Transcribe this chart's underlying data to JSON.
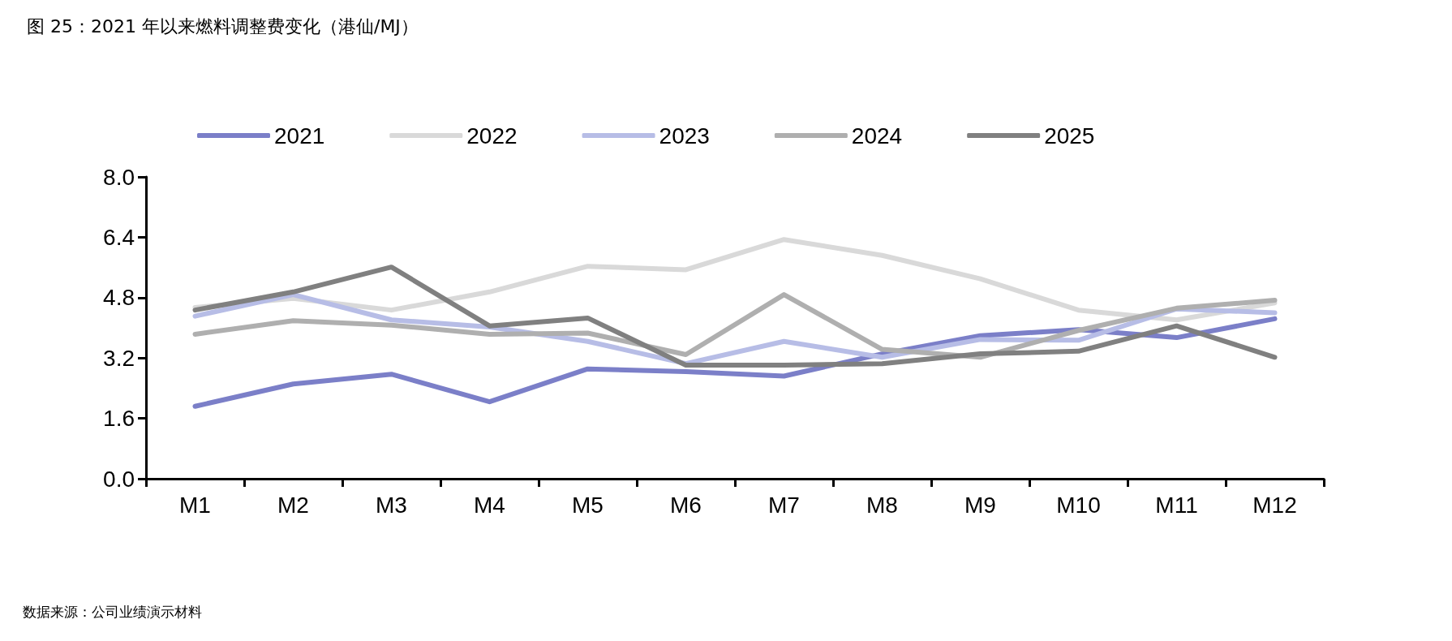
{
  "chart_data": {
    "type": "line",
    "title": "图 25：2021 年以来燃料调整费变化（港仙/MJ）",
    "annotations": [
      "数据来源：公司业绩演示材料"
    ],
    "categories": [
      "M1",
      "M2",
      "M3",
      "M4",
      "M5",
      "M6",
      "M7",
      "M8",
      "M9",
      "M10",
      "M11",
      "M12"
    ],
    "series": [
      {
        "name": "2021",
        "color": "#7b7fc8",
        "values": [
          1.92,
          2.51,
          2.77,
          2.04,
          2.91,
          2.84,
          2.72,
          3.31,
          3.79,
          3.95,
          3.74,
          4.24
        ]
      },
      {
        "name": "2022",
        "color": "#d9d9d9",
        "values": [
          4.54,
          4.78,
          4.47,
          4.95,
          5.63,
          5.54,
          6.34,
          5.92,
          5.3,
          4.47,
          4.21,
          4.66
        ]
      },
      {
        "name": "2023",
        "color": "#b7bde6",
        "values": [
          4.31,
          4.88,
          4.21,
          4.02,
          3.64,
          3.05,
          3.64,
          3.22,
          3.69,
          3.67,
          4.5,
          4.4
        ]
      },
      {
        "name": "2024",
        "color": "#afafaf",
        "values": [
          3.83,
          4.19,
          4.07,
          3.83,
          3.86,
          3.29,
          4.88,
          3.43,
          3.22,
          3.93,
          4.52,
          4.73
        ]
      },
      {
        "name": "2025",
        "color": "#808080",
        "values": [
          4.47,
          4.95,
          5.61,
          4.05,
          4.26,
          3.01,
          3.01,
          3.05,
          3.31,
          3.38,
          4.05,
          3.22
        ]
      }
    ],
    "ylim": [
      0,
      8
    ],
    "yticks": [
      {
        "value": 0,
        "label": "0.0"
      },
      {
        "value": 1.6,
        "label": "1.6"
      },
      {
        "value": 3.2,
        "label": "3.2"
      },
      {
        "value": 4.8,
        "label": "4.8"
      },
      {
        "value": 6.4,
        "label": "6.4"
      },
      {
        "value": 8,
        "label": "8.0"
      }
    ],
    "grid": false,
    "legend": "top",
    "marker": "none",
    "line_style": "solid"
  }
}
